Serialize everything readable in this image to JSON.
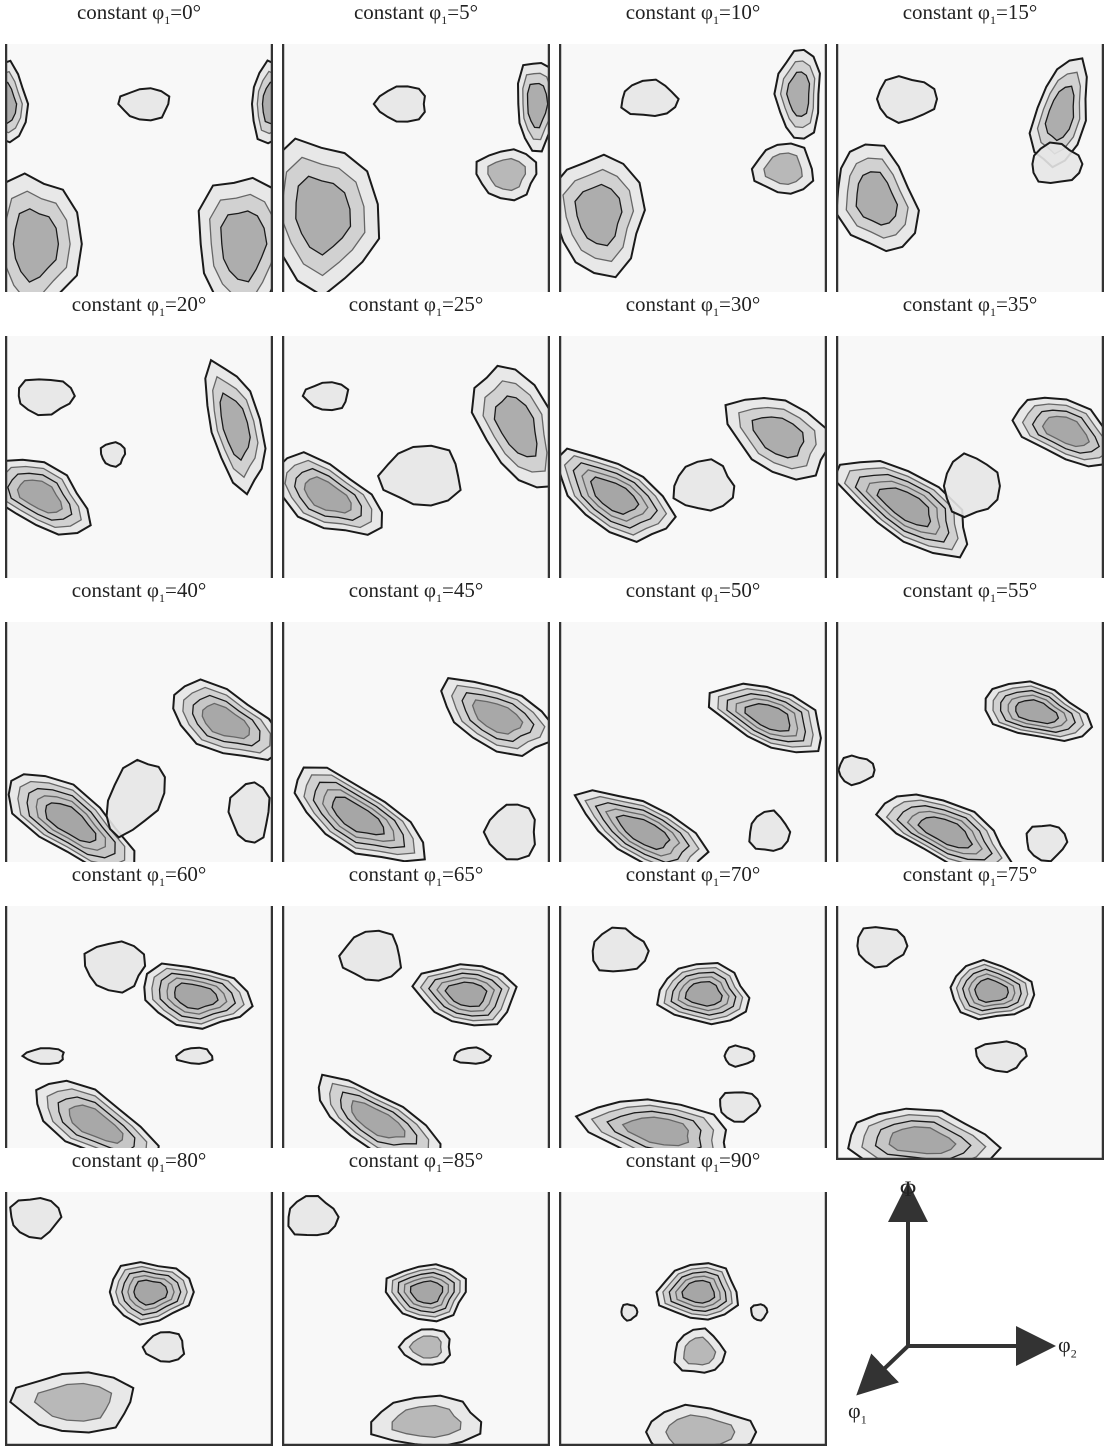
{
  "panels": [
    {
      "label": "constant φ",
      "sub": "1",
      "value": "=0°"
    },
    {
      "label": "constant φ",
      "sub": "1",
      "value": "=5°"
    },
    {
      "label": "constant φ",
      "sub": "1",
      "value": "=10°"
    },
    {
      "label": "constant φ",
      "sub": "1",
      "value": "=15°"
    },
    {
      "label": "constant φ",
      "sub": "1",
      "value": "=20°"
    },
    {
      "label": "constant φ",
      "sub": "1",
      "value": "=25°"
    },
    {
      "label": "constant φ",
      "sub": "1",
      "value": "=30°"
    },
    {
      "label": "constant φ",
      "sub": "1",
      "value": "=35°"
    },
    {
      "label": "constant φ",
      "sub": "1",
      "value": "=40°"
    },
    {
      "label": "constant φ",
      "sub": "1",
      "value": "=45°"
    },
    {
      "label": "constant φ",
      "sub": "1",
      "value": "=50°"
    },
    {
      "label": "constant φ",
      "sub": "1",
      "value": "=55°"
    },
    {
      "label": "constant φ",
      "sub": "1",
      "value": "=60°"
    },
    {
      "label": "constant φ",
      "sub": "1",
      "value": "=65°"
    },
    {
      "label": "constant φ",
      "sub": "1",
      "value": "=70°"
    },
    {
      "label": "constant φ",
      "sub": "1",
      "value": "=75°"
    },
    {
      "label": "constant φ",
      "sub": "1",
      "value": "=80°"
    },
    {
      "label": "constant φ",
      "sub": "1",
      "value": "=85°"
    },
    {
      "label": "constant φ",
      "sub": "1",
      "value": "=90°"
    }
  ],
  "axes_key": {
    "vertical": "Φ",
    "horizontal": "φ",
    "horizontal_sub": "2",
    "diagonal": "φ",
    "diagonal_sub": "1"
  },
  "colors": {
    "contour_line": "#1a1a1a",
    "inner_line": "#666666",
    "fill_low": "#e6e6e6",
    "fill_mid": "#bdbdbd",
    "fill_high": "#8f8f8f",
    "frame": "#333333"
  }
}
